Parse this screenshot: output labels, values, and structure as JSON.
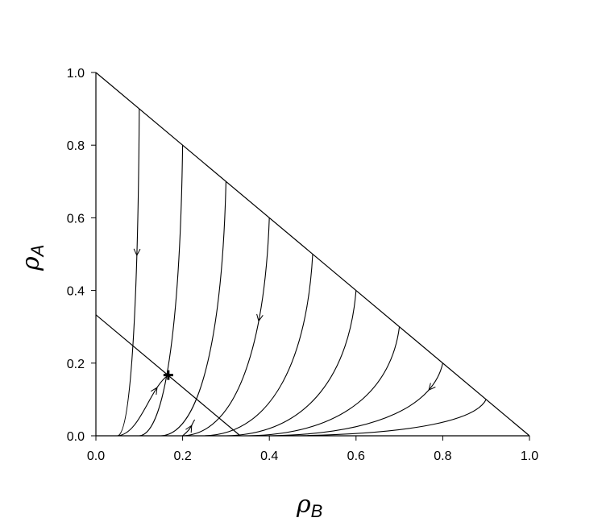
{
  "chart_data": {
    "type": "line",
    "title": "",
    "xlabel": {
      "symbol": "ρ",
      "subscript": "B"
    },
    "ylabel": {
      "symbol": "ρ",
      "subscript": "A"
    },
    "xlim": [
      0.0,
      1.0
    ],
    "ylim": [
      0.0,
      1.0
    ],
    "x_ticks": [
      "0.0",
      "0.2",
      "0.4",
      "0.6",
      "0.8",
      "1.0"
    ],
    "y_ticks": [
      "0.0",
      "0.2",
      "0.4",
      "0.6",
      "0.8",
      "1.0"
    ],
    "grid": false,
    "legend": "none",
    "fixed_point": {
      "x": 0.167,
      "y": 0.167
    },
    "boundary_line": {
      "x": [
        0.0,
        1.0
      ],
      "y": [
        1.0,
        0.0
      ]
    },
    "nullcline": {
      "x": [
        0.0,
        0.333
      ],
      "y": [
        0.333,
        0.0
      ]
    },
    "trajectories": [
      {
        "start": [
          0.1,
          0.9
        ],
        "end": [
          0.05,
          0.0
        ],
        "arrow_y": 0.5
      },
      {
        "start": [
          0.2,
          0.8
        ],
        "end": [
          0.1,
          0.0
        ]
      },
      {
        "start": [
          0.3,
          0.7
        ],
        "end": [
          0.15,
          0.0
        ]
      },
      {
        "start": [
          0.4,
          0.6
        ],
        "end": [
          0.2,
          0.0
        ],
        "arrow_y": 0.32
      },
      {
        "start": [
          0.5,
          0.5
        ],
        "end": [
          0.25,
          0.0
        ]
      },
      {
        "start": [
          0.6,
          0.4
        ],
        "end": [
          0.3,
          0.0
        ]
      },
      {
        "start": [
          0.7,
          0.3
        ],
        "end": [
          0.35,
          0.0
        ]
      },
      {
        "start": [
          0.8,
          0.2
        ],
        "end": [
          0.4,
          0.0
        ],
        "arrow_y": 0.13
      },
      {
        "start": [
          0.9,
          0.1
        ],
        "end": [
          0.45,
          0.0
        ]
      }
    ],
    "lower_trajectories": [
      {
        "start": [
          0.05,
          0.0
        ],
        "end": [
          0.167,
          0.167
        ],
        "arrow_y": 0.13
      },
      {
        "start": [
          0.2,
          0.0
        ],
        "end": [
          0.167,
          0.167
        ],
        "arrow_x": 0.22
      }
    ]
  }
}
